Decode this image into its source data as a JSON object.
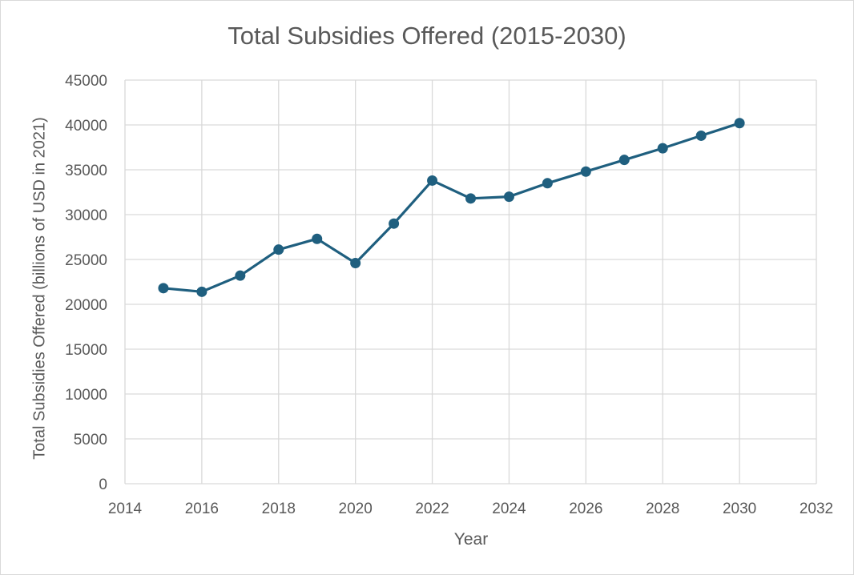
{
  "chart_data": {
    "type": "scatter",
    "title": "Total Subsidies Offered (2015-2030)",
    "xlabel": "Year",
    "ylabel": "Total Subsidies Offered (billions of USD in 2021)",
    "xlim": [
      2014,
      2032
    ],
    "ylim": [
      0,
      45000
    ],
    "xticks": [
      "2014",
      "2016",
      "2018",
      "2020",
      "2022",
      "2024",
      "2026",
      "2028",
      "2030",
      "2032"
    ],
    "yticks": [
      "0",
      "5000",
      "10000",
      "15000",
      "20000",
      "25000",
      "30000",
      "35000",
      "40000",
      "45000"
    ],
    "grid": true,
    "legend": "none",
    "line_color": "#1f5f7f",
    "series": [
      {
        "x": [
          2015,
          2016,
          2017,
          2018,
          2019,
          2020,
          2021,
          2022,
          2023,
          2024,
          2025,
          2026,
          2027,
          2028,
          2029,
          2030
        ],
        "y": [
          21800,
          21400,
          23200,
          26100,
          27300,
          24600,
          29000,
          33800,
          31800,
          32000,
          33500,
          34800,
          36100,
          37400,
          38800,
          40200
        ]
      }
    ]
  }
}
